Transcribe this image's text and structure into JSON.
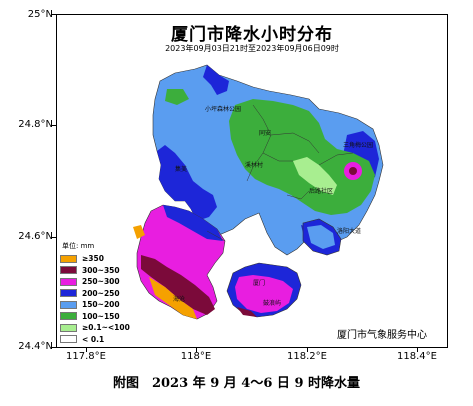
{
  "map": {
    "title": "厦门市降水小时分布",
    "subtitle": "2023年09月03日21时至2023年09月06日09时",
    "agency": "厦门市气象服务中心",
    "caption": "附图　2023 年 9 月 4～6 日 9 时降水量"
  },
  "axes": {
    "lat_labels": [
      "25°N",
      "24.8°N",
      "24.6°N",
      "24.4°N"
    ],
    "lon_labels": [
      "117.8°E",
      "118°E",
      "118.2°E",
      "118.4°E"
    ]
  },
  "legend": {
    "title": "单位: mm",
    "items": [
      {
        "label": "≥350",
        "color": "#f5a100"
      },
      {
        "label": "300~350",
        "color": "#7b0a3a"
      },
      {
        "label": "250~300",
        "color": "#e81ee0"
      },
      {
        "label": "200~250",
        "color": "#1d26d8"
      },
      {
        "label": "150~200",
        "color": "#5a9df0"
      },
      {
        "label": "100~150",
        "color": "#3cae3c"
      },
      {
        "label": "≥0.1~<100",
        "color": "#a8ee90"
      },
      {
        "label": "< 0.1",
        "color": "#ffffff"
      }
    ]
  },
  "places": {
    "p1": "小坪森林公园",
    "p2": "同安",
    "p3": "三角梅公园",
    "p4": "溪林村",
    "p5": "后路社区",
    "p6": "洛阳大道",
    "p7": "海沧",
    "p8": "集美",
    "p9": "厦门",
    "p10": "鼓浪屿"
  }
}
